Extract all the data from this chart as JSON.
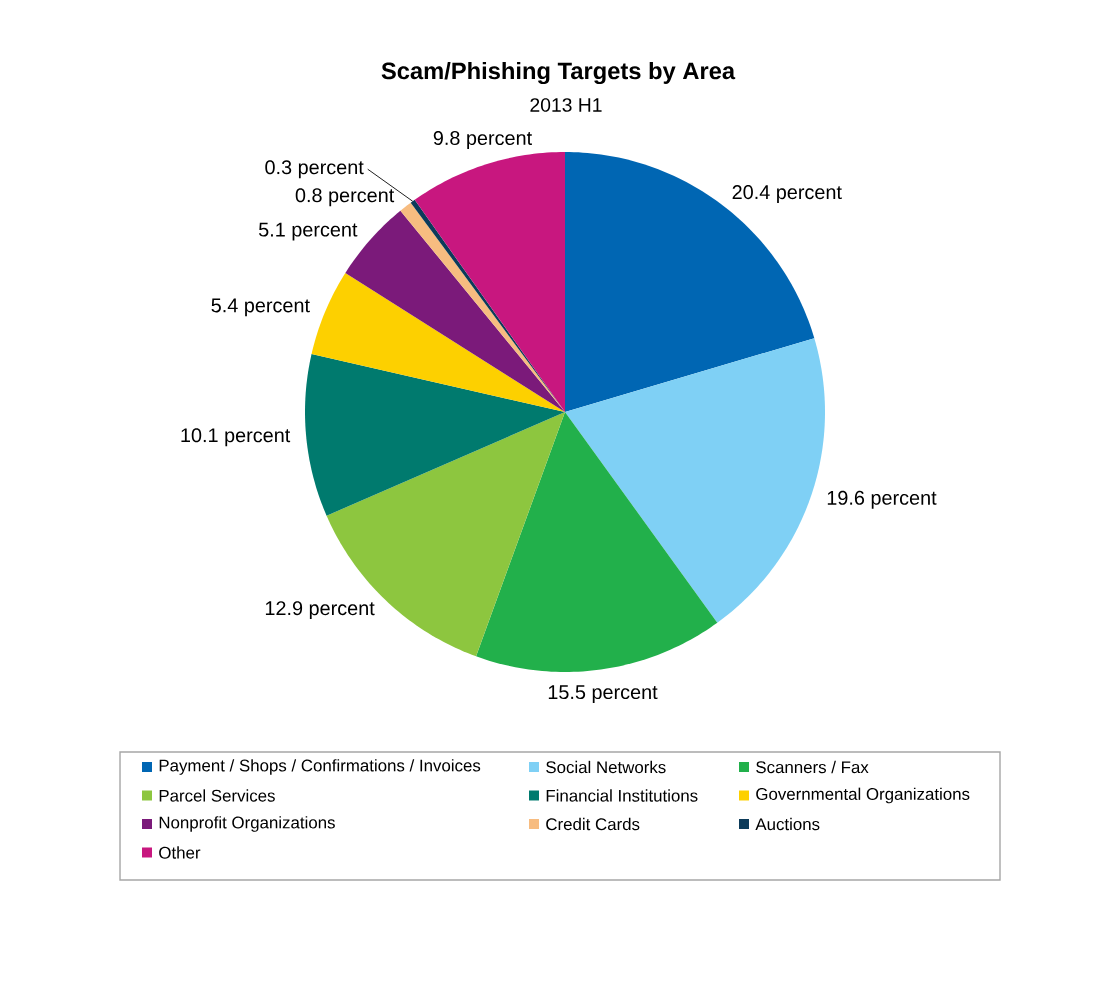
{
  "chart_data": {
    "type": "pie",
    "title": "Scam/Phishing Targets by Area",
    "subtitle": "2013 H1",
    "categories": [
      "Payment / Shops / Confirmations / Invoices",
      "Social Networks",
      "Scanners / Fax",
      "Parcel Services",
      "Financial Institutions",
      "Governmental Organizations",
      "Nonprofit Organizations",
      "Credit Cards",
      "Auctions",
      "Other"
    ],
    "values": [
      20.4,
      19.6,
      15.5,
      12.9,
      10.1,
      5.4,
      5.1,
      0.8,
      0.3,
      9.8
    ],
    "colors": [
      "#0066b3",
      "#7fd0f5",
      "#22b04b",
      "#8dc63f",
      "#007a6e",
      "#fdd000",
      "#7b1a7a",
      "#f7bc80",
      "#0c3b5a",
      "#c8177f"
    ],
    "value_labels": [
      "20.4 percent",
      "19.6 percent",
      "15.5 percent",
      "12.9 percent",
      "10.1 percent",
      "5.4 percent",
      "5.1 percent",
      "0.8 percent",
      "0.3 percent",
      "9.8 percent"
    ],
    "legend": "bottom"
  }
}
